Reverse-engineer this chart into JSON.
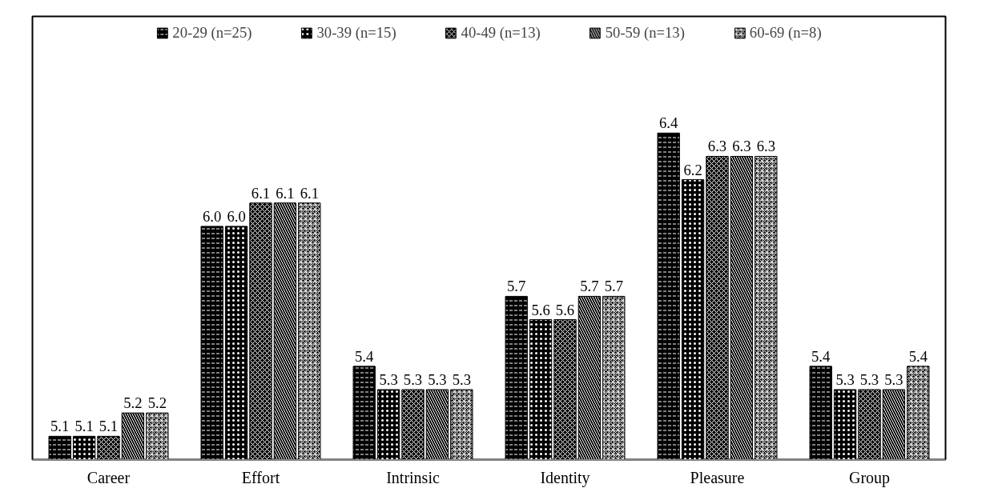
{
  "chart_data": {
    "type": "bar",
    "categories": [
      "Career",
      "Effort",
      "Intrinsic",
      "Identity",
      "Pleasure",
      "Group"
    ],
    "series": [
      {
        "name": "20-29 (n=25)",
        "color": "#000000",
        "values": [
          5.1,
          6.0,
          5.4,
          5.7,
          6.4,
          5.4
        ],
        "value_labels": [
          "5.1",
          "6.0",
          "5.4",
          "5.7",
          "6.4",
          "5.4"
        ]
      },
      {
        "name": "30-39 (n=15)",
        "color": "#000000",
        "values": [
          5.1,
          6.0,
          5.3,
          5.6,
          6.2,
          5.3
        ],
        "value_labels": [
          "5.1",
          "6.0",
          "5.3",
          "5.6",
          "6.2",
          "5.3"
        ]
      },
      {
        "name": "40-49 (n=13)",
        "color": "#000000",
        "values": [
          5.1,
          6.1,
          5.3,
          5.6,
          6.3,
          5.3
        ],
        "value_labels": [
          "5.1",
          "6.1",
          "5.3",
          "5.6",
          "6.3",
          "5.3"
        ]
      },
      {
        "name": "50-59 (n=13)",
        "color": "#000000",
        "values": [
          5.2,
          6.1,
          5.3,
          5.7,
          6.3,
          5.3
        ],
        "value_labels": [
          "5.2",
          "6.1",
          "5.3",
          "5.7",
          "6.3",
          "5.3"
        ]
      },
      {
        "name": "60-69 (n=8)",
        "color": "#000000",
        "values": [
          5.2,
          6.1,
          5.3,
          5.7,
          6.3,
          5.4
        ],
        "value_labels": [
          "5.2",
          "6.1",
          "5.3",
          "5.7",
          "6.3",
          "5.4"
        ]
      }
    ],
    "ylim": [
      5.0,
      6.9
    ],
    "tick_labels": "x",
    "legend": "top",
    "grid": false
  }
}
